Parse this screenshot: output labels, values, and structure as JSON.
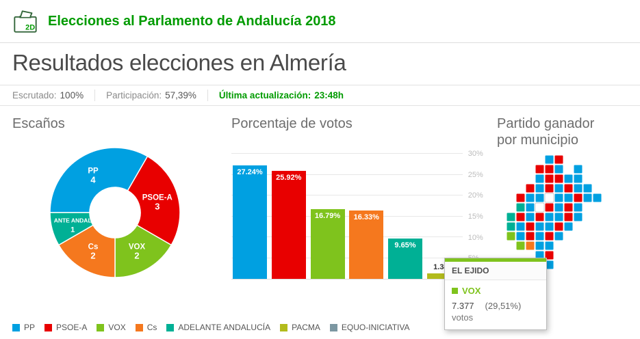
{
  "theme": {
    "brand_green": "#009b00"
  },
  "header": {
    "logo_badge": "2D",
    "title": "Elecciones al Parlamento de Andalucía 2018"
  },
  "page": {
    "title": "Resultados elecciones en Almería"
  },
  "status": {
    "escrutado_label": "Escrutado:",
    "escrutado_value": "100%",
    "participacion_label": "Participación:",
    "participacion_value": "57,39%",
    "update_label": "Última actualización:",
    "update_value": "23:48h"
  },
  "chart_data": [
    {
      "type": "pie",
      "title": "Escaños",
      "labels": [
        "PP",
        "PSOE-A",
        "VOX",
        "Cs",
        "ADELANTE ANDALUCÍA"
      ],
      "display_labels": [
        "PP",
        "PSOE-A",
        "VOX",
        "Cs",
        "ANTE ANDAL"
      ],
      "values": [
        4,
        3,
        2,
        2,
        1
      ],
      "colors": [
        "#00a0e1",
        "#e80000",
        "#7fc31d",
        "#f5781e",
        "#00b095"
      ],
      "inner_radius_ratio": 0.39,
      "start_angle_deg": -90,
      "legend_position": "bottom"
    },
    {
      "type": "bar",
      "title": "Porcentaje de votos",
      "categories": [
        "PP",
        "PSOE-A",
        "VOX",
        "Cs",
        "ADELANTE ANDALUCÍA",
        "PACMA"
      ],
      "values": [
        27.24,
        25.92,
        16.79,
        16.33,
        9.65,
        1.34
      ],
      "value_labels": [
        "27.24%",
        "25.92%",
        "16.79%",
        "16.33%",
        "9.65%",
        "1.34%"
      ],
      "colors": [
        "#00a0e1",
        "#e80000",
        "#7fc31d",
        "#f5781e",
        "#00b095",
        "#b2bb1c"
      ],
      "xlabel": "",
      "ylabel": "",
      "ylim": [
        0,
        31
      ],
      "ytick_values": [
        5,
        10,
        15,
        20,
        25,
        30
      ],
      "ytick_labels": [
        "5%",
        "10%",
        "15%",
        "20%",
        "25%",
        "30%"
      ],
      "grid": true,
      "axis_side": "right"
    },
    {
      "type": "map",
      "title": "Partido ganador por municipio",
      "key": {
        "P": "#00a0e1",
        "S": "#e80000",
        "V": "#7fc31d",
        "C": "#f5781e",
        "A": "#00b095",
        "Q": "#7c97a2",
        "W": "#ffffff"
      },
      "rows": [
        ".....PS....",
        "....SSP.P..",
        "....PSSPP..",
        "...SPSPSPP.",
        "..SPPWPPSPP",
        "..APWSPSP..",
        ".ASPSPPSP..",
        ".APSPPSP...",
        ".VPSPSP....",
        "..VCPP.....",
        "....PS.....",
        ".....P....."
      ]
    }
  ],
  "tooltip": {
    "municipality": "EL EJIDO",
    "party": "VOX",
    "votes": "7.377",
    "votes_unit": "votos",
    "percent": "(29,51%)",
    "accent": "#7fc31d"
  },
  "legend": {
    "items": [
      {
        "label": "PP",
        "color": "#00a0e1"
      },
      {
        "label": "PSOE-A",
        "color": "#e80000"
      },
      {
        "label": "VOX",
        "color": "#7fc31d"
      },
      {
        "label": "Cs",
        "color": "#f5781e"
      },
      {
        "label": "ADELANTE ANDALUCÍA",
        "color": "#00b095"
      },
      {
        "label": "PACMA",
        "color": "#b2bb1c"
      },
      {
        "label": "EQUO-INICIATIVA",
        "color": "#7c97a2"
      }
    ]
  }
}
